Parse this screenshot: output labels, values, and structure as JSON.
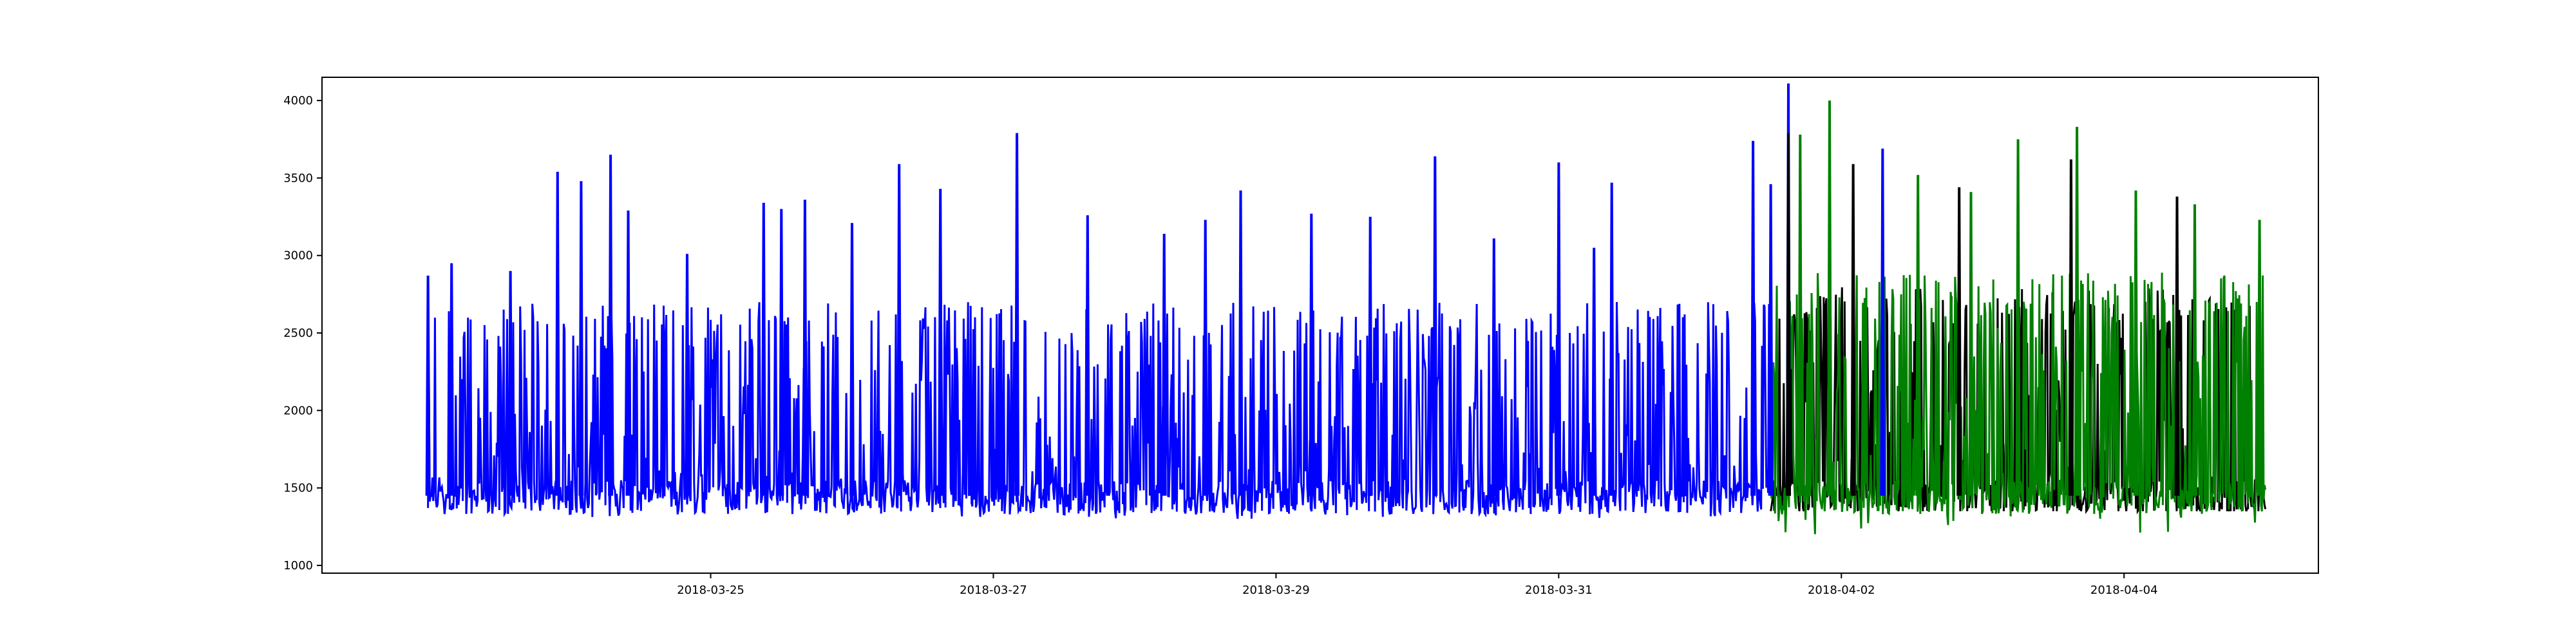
{
  "chart_data": {
    "type": "line",
    "title": "",
    "xlabel": "",
    "ylabel": "",
    "x_range": [
      "2018-03-22T06:00",
      "2018-04-05T09:00"
    ],
    "ylim": [
      950,
      4150
    ],
    "x_ticks": [
      "2018-03-25",
      "2018-03-27",
      "2018-03-29",
      "2018-03-31",
      "2018-04-02",
      "2018-04-04"
    ],
    "y_ticks": [
      1000,
      1500,
      2000,
      2500,
      3000,
      3500,
      4000
    ],
    "grid": false,
    "legend": "none",
    "series": [
      {
        "color": "#0000ff",
        "start": "2018-03-23T00:00",
        "end": "2018-04-01T12:00",
        "baseline": 1450,
        "typical_range": [
          1300,
          2700
        ],
        "peaks": [
          {
            "x": "2018-03-23T00:00",
            "y": 2870
          },
          {
            "x": "2018-03-23T04:00",
            "y": 2950
          },
          {
            "x": "2018-03-23T14:00",
            "y": 2900
          },
          {
            "x": "2018-03-23T22:00",
            "y": 3540
          },
          {
            "x": "2018-03-24T02:00",
            "y": 3480
          },
          {
            "x": "2018-03-24T07:00",
            "y": 3650
          },
          {
            "x": "2018-03-24T10:00",
            "y": 3290
          },
          {
            "x": "2018-03-24T20:00",
            "y": 3010
          },
          {
            "x": "2018-03-25T09:00",
            "y": 3340
          },
          {
            "x": "2018-03-25T12:00",
            "y": 3300
          },
          {
            "x": "2018-03-25T16:00",
            "y": 3360
          },
          {
            "x": "2018-03-26T00:00",
            "y": 3210
          },
          {
            "x": "2018-03-26T08:00",
            "y": 3590
          },
          {
            "x": "2018-03-26T15:00",
            "y": 3430
          },
          {
            "x": "2018-03-27T04:00",
            "y": 3790
          },
          {
            "x": "2018-03-27T16:00",
            "y": 3260
          },
          {
            "x": "2018-03-28T05:00",
            "y": 3140
          },
          {
            "x": "2018-03-28T12:00",
            "y": 3230
          },
          {
            "x": "2018-03-28T18:00",
            "y": 3420
          },
          {
            "x": "2018-03-29T06:00",
            "y": 3270
          },
          {
            "x": "2018-03-29T16:00",
            "y": 3250
          },
          {
            "x": "2018-03-30T03:00",
            "y": 3640
          },
          {
            "x": "2018-03-30T13:00",
            "y": 3110
          },
          {
            "x": "2018-03-31T00:00",
            "y": 3600
          },
          {
            "x": "2018-03-31T06:00",
            "y": 3050
          },
          {
            "x": "2018-03-31T09:00",
            "y": 3470
          },
          {
            "x": "2018-04-01T09:00",
            "y": 3740
          },
          {
            "x": "2018-04-01T12:00",
            "y": 3460
          },
          {
            "x": "2018-04-01T15:00",
            "y": 4110
          },
          {
            "x": "2018-04-01T22:00",
            "y": 3240
          },
          {
            "x": "2018-04-02T07:00",
            "y": 3690
          }
        ]
      },
      {
        "color": "#000000",
        "start": "2018-04-01T12:00",
        "end": "2018-04-05T00:00",
        "baseline": 1450,
        "typical_range": [
          1350,
          2800
        ],
        "peaks": [
          {
            "x": "2018-04-01T15:00",
            "y": 3790
          },
          {
            "x": "2018-04-02T02:00",
            "y": 3590
          },
          {
            "x": "2018-04-02T20:00",
            "y": 3440
          },
          {
            "x": "2018-04-03T15:00",
            "y": 3620
          },
          {
            "x": "2018-04-04T09:00",
            "y": 3380
          }
        ]
      },
      {
        "color": "#008000",
        "start": "2018-04-01T12:00",
        "end": "2018-04-05T00:00",
        "baseline": 1450,
        "typical_range": [
          1200,
          2900
        ],
        "peaks": [
          {
            "x": "2018-04-01T17:00",
            "y": 3780
          },
          {
            "x": "2018-04-01T22:00",
            "y": 4000
          },
          {
            "x": "2018-04-02T13:00",
            "y": 3520
          },
          {
            "x": "2018-04-02T22:00",
            "y": 3410
          },
          {
            "x": "2018-04-03T06:00",
            "y": 3750
          },
          {
            "x": "2018-04-03T16:00",
            "y": 3830
          },
          {
            "x": "2018-04-04T02:00",
            "y": 3420
          },
          {
            "x": "2018-04-04T12:00",
            "y": 3330
          },
          {
            "x": "2018-04-04T23:00",
            "y": 3230
          }
        ]
      }
    ]
  }
}
